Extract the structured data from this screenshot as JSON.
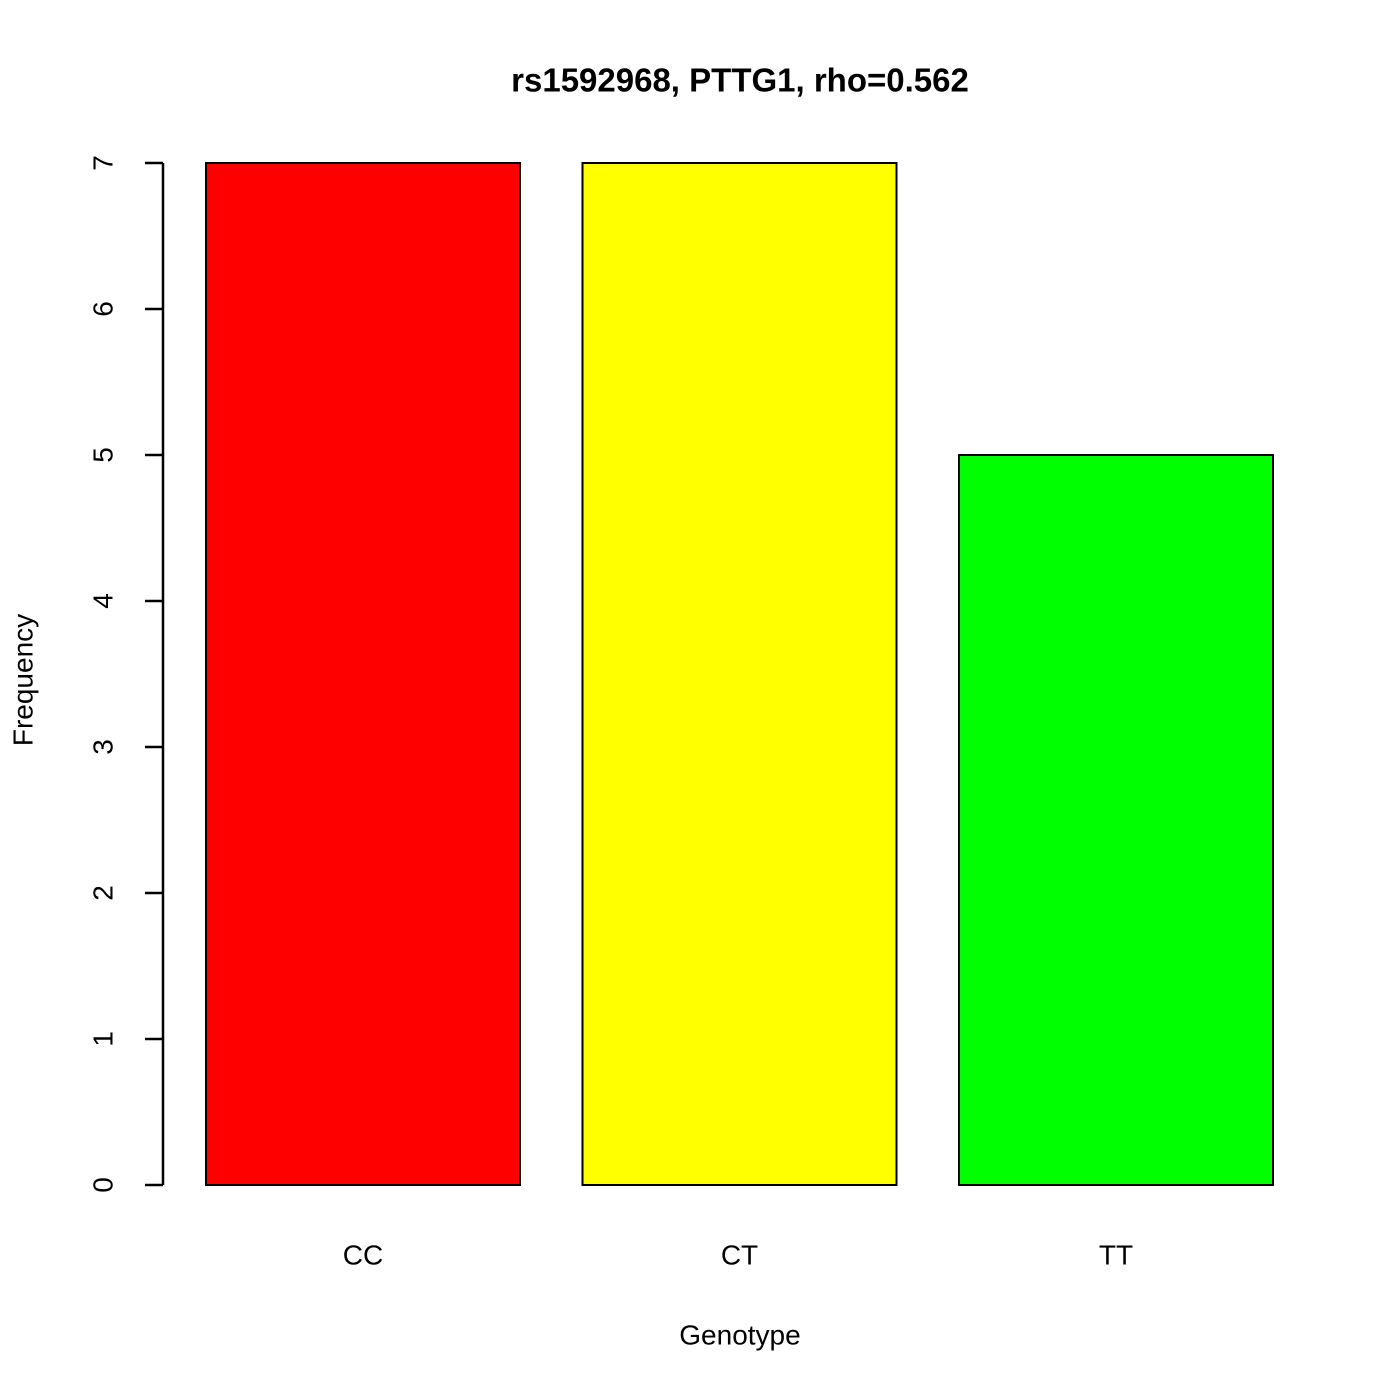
{
  "chart_data": {
    "type": "bar",
    "title": "rs1592968, PTTG1, rho=0.562",
    "x_label": "Genotype",
    "y_label": "Frequency",
    "categories": [
      "CC",
      "CT",
      "TT"
    ],
    "values": [
      7,
      7,
      5
    ],
    "colors": [
      "#ff0000",
      "#ffff00",
      "#00ff00"
    ],
    "ylim": [
      0,
      7
    ],
    "yticks": [
      0,
      1,
      2,
      3,
      4,
      5,
      6,
      7
    ]
  }
}
